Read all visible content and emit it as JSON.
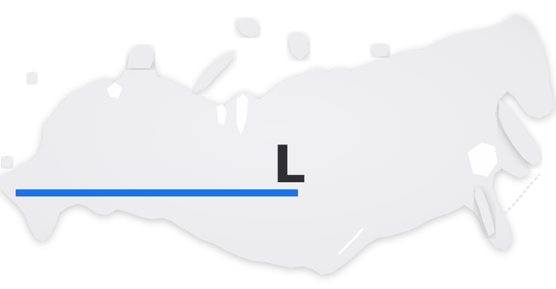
{
  "map": {
    "region_icon": "russia-map-silhouette",
    "fill_color": "#ececee",
    "shadow_color": "#d8d8dc"
  },
  "marker": {
    "letter": "L",
    "letter_color": "#2f2f33",
    "bar_color": "#1a73e8"
  }
}
